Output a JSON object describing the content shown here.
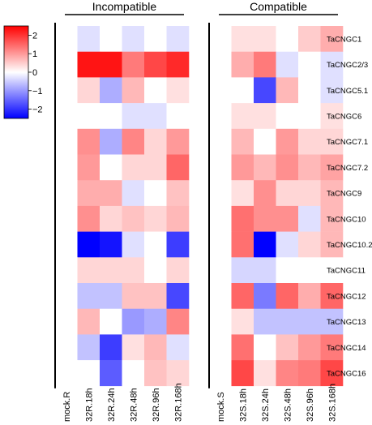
{
  "chart_data": {
    "type": "heatmap",
    "color_scale": {
      "low": "#0000ff",
      "mid": "#ffffff",
      "high": "#ff0000",
      "range": [
        -2.5,
        2.5
      ],
      "ticks": [
        2,
        1,
        0,
        -1,
        -2
      ],
      "tick_labels": [
        "2",
        "1",
        "0",
        "−1",
        "−2"
      ]
    },
    "groups": [
      {
        "label": "Incompatible",
        "columns": [
          0,
          5
        ]
      },
      {
        "label": "Compatible",
        "columns": [
          6,
          11
        ]
      }
    ],
    "columns": [
      "mock.R",
      "32R.18h",
      "32R.24h",
      "32R.48h",
      "32R.96h",
      "32R.168h",
      "mock.S",
      "32S.18h",
      "32S.24h",
      "32S.48h",
      "32S.96h",
      "32S.168h"
    ],
    "rows": [
      "TaCNGC1",
      "TaCNGC2/3",
      "TaCNGC5.1",
      "TaCNGC6",
      "TaCNGC7.1",
      "TaCNGC7.2",
      "TaCNGC9",
      "TaCNGC10",
      "TaCNGC10.2",
      "TaCNGC11",
      "TaCNGC12",
      "TaCNGC13",
      "TaCNGC14",
      "TaCNGC16"
    ],
    "values": [
      [
        0,
        -0.3,
        0,
        -0.3,
        0,
        -0.3,
        0,
        0.3,
        0.3,
        0,
        0.5,
        0.8
      ],
      [
        0,
        2.3,
        2.3,
        1.3,
        1.8,
        2.1,
        0,
        0.8,
        1.3,
        -0.3,
        0,
        -0.3
      ],
      [
        0,
        0.4,
        -0.8,
        0.7,
        0,
        0.3,
        0,
        0,
        -1.8,
        0.7,
        0,
        -0.3
      ],
      [
        0,
        0,
        0,
        -0.3,
        -0.3,
        0,
        0,
        0.3,
        0.3,
        0,
        0,
        0.3
      ],
      [
        0,
        1.1,
        -0.8,
        1.2,
        0.4,
        1.0,
        0,
        0.7,
        0,
        1.0,
        0.4,
        0.4
      ],
      [
        0,
        1.0,
        0,
        0.4,
        0.4,
        1.5,
        0,
        1.0,
        0.7,
        1.1,
        0.7,
        0.9
      ],
      [
        0,
        0.8,
        0.8,
        -0.3,
        0,
        0.6,
        0,
        0.3,
        1.1,
        0.4,
        0.4,
        0.7
      ],
      [
        0,
        1.1,
        0.4,
        0.6,
        0.4,
        0.7,
        0,
        1.4,
        1.1,
        1.1,
        -0.3,
        0.7
      ],
      [
        0,
        -2.6,
        -2.3,
        -0.3,
        0,
        -1.9,
        0,
        1.4,
        -2.7,
        -0.3,
        0.4,
        0.7
      ],
      [
        0,
        0.4,
        0.4,
        0.4,
        0,
        0.4,
        0,
        -0.4,
        -0.4,
        0,
        0,
        0
      ],
      [
        0,
        -0.6,
        -0.6,
        0.6,
        0.6,
        -1.8,
        0,
        1.5,
        -1.3,
        1.5,
        0.8,
        1.5
      ],
      [
        0,
        0.7,
        0,
        -1.0,
        -0.8,
        1.2,
        0,
        0.3,
        -0.6,
        -0.6,
        -0.6,
        -0.6
      ],
      [
        0,
        -0.6,
        -1.9,
        0.3,
        0.7,
        -0.3,
        0,
        1.4,
        0,
        0.6,
        1.0,
        1.3
      ],
      [
        0,
        0,
        -1.6,
        0,
        0.6,
        0.4,
        0,
        1.8,
        0.3,
        1.2,
        1.3,
        1.8
      ]
    ]
  }
}
